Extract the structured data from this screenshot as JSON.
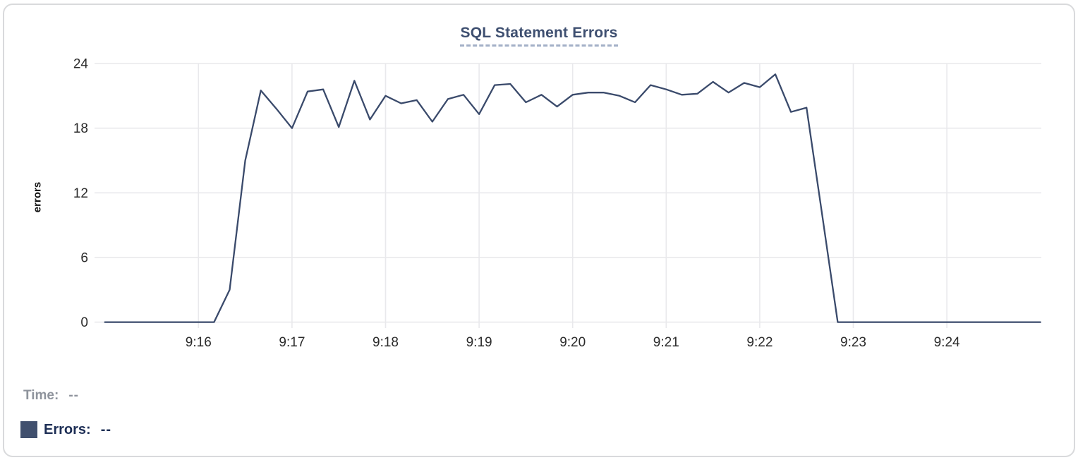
{
  "chart": {
    "title": "SQL Statement Errors",
    "y_axis_label": "errors"
  },
  "tooltip": {
    "time_label": "Time:",
    "time_value": "--",
    "errors_label": "Errors:",
    "errors_value": "--"
  },
  "colors": {
    "line": "#3a4a6b",
    "swatch": "#41506e",
    "title": "#3e4f70",
    "title_underline": "#a3b0c7",
    "time_text": "#8e939c",
    "errors_text": "#1d2e55",
    "grid": "#e9e9ec",
    "tick_text": "#2b2b2b",
    "card_border": "#d9dadc"
  },
  "chart_data": {
    "type": "line",
    "title": "SQL Statement Errors",
    "xlabel": "",
    "ylabel": "errors",
    "ylim": [
      0,
      24
    ],
    "y_ticks": [
      0,
      6,
      12,
      18,
      24
    ],
    "x_ticks": [
      "9:16",
      "9:17",
      "9:18",
      "9:19",
      "9:20",
      "9:21",
      "9:22",
      "9:23",
      "9:24"
    ],
    "x_range": [
      "9:15:00",
      "9:25:00"
    ],
    "grid": true,
    "legend_position": "bottom-left",
    "series": [
      {
        "name": "Errors",
        "x": [
          "9:15:00",
          "9:15:10",
          "9:15:20",
          "9:15:30",
          "9:15:40",
          "9:15:50",
          "9:16:00",
          "9:16:10",
          "9:16:20",
          "9:16:30",
          "9:16:40",
          "9:16:50",
          "9:17:00",
          "9:17:10",
          "9:17:20",
          "9:17:30",
          "9:17:40",
          "9:17:50",
          "9:18:00",
          "9:18:10",
          "9:18:20",
          "9:18:30",
          "9:18:40",
          "9:18:50",
          "9:19:00",
          "9:19:10",
          "9:19:20",
          "9:19:30",
          "9:19:40",
          "9:19:50",
          "9:20:00",
          "9:20:10",
          "9:20:20",
          "9:20:30",
          "9:20:40",
          "9:20:50",
          "9:21:00",
          "9:21:10",
          "9:21:20",
          "9:21:30",
          "9:21:40",
          "9:21:50",
          "9:22:00",
          "9:22:10",
          "9:22:20",
          "9:22:30",
          "9:22:40",
          "9:22:50",
          "9:23:00",
          "9:23:10",
          "9:23:20",
          "9:23:30",
          "9:23:40",
          "9:23:50",
          "9:24:00",
          "9:24:10",
          "9:24:20",
          "9:24:30",
          "9:24:40",
          "9:24:50",
          "9:25:00"
        ],
        "values": [
          0,
          0,
          0,
          0,
          0,
          0,
          0,
          0,
          3,
          15,
          21.5,
          19.8,
          18,
          21.4,
          21.6,
          18.1,
          22.4,
          18.8,
          21,
          20.3,
          20.6,
          18.6,
          20.7,
          21.1,
          19.3,
          22,
          22.1,
          20.4,
          21.1,
          20,
          21.1,
          21.3,
          21.3,
          21,
          20.4,
          22,
          21.6,
          21.1,
          21.2,
          22.3,
          21.3,
          22.2,
          21.8,
          23,
          19.5,
          19.9,
          10,
          0,
          0,
          0,
          0,
          0,
          0,
          0,
          0,
          0,
          0,
          0,
          0,
          0,
          0
        ]
      }
    ]
  }
}
